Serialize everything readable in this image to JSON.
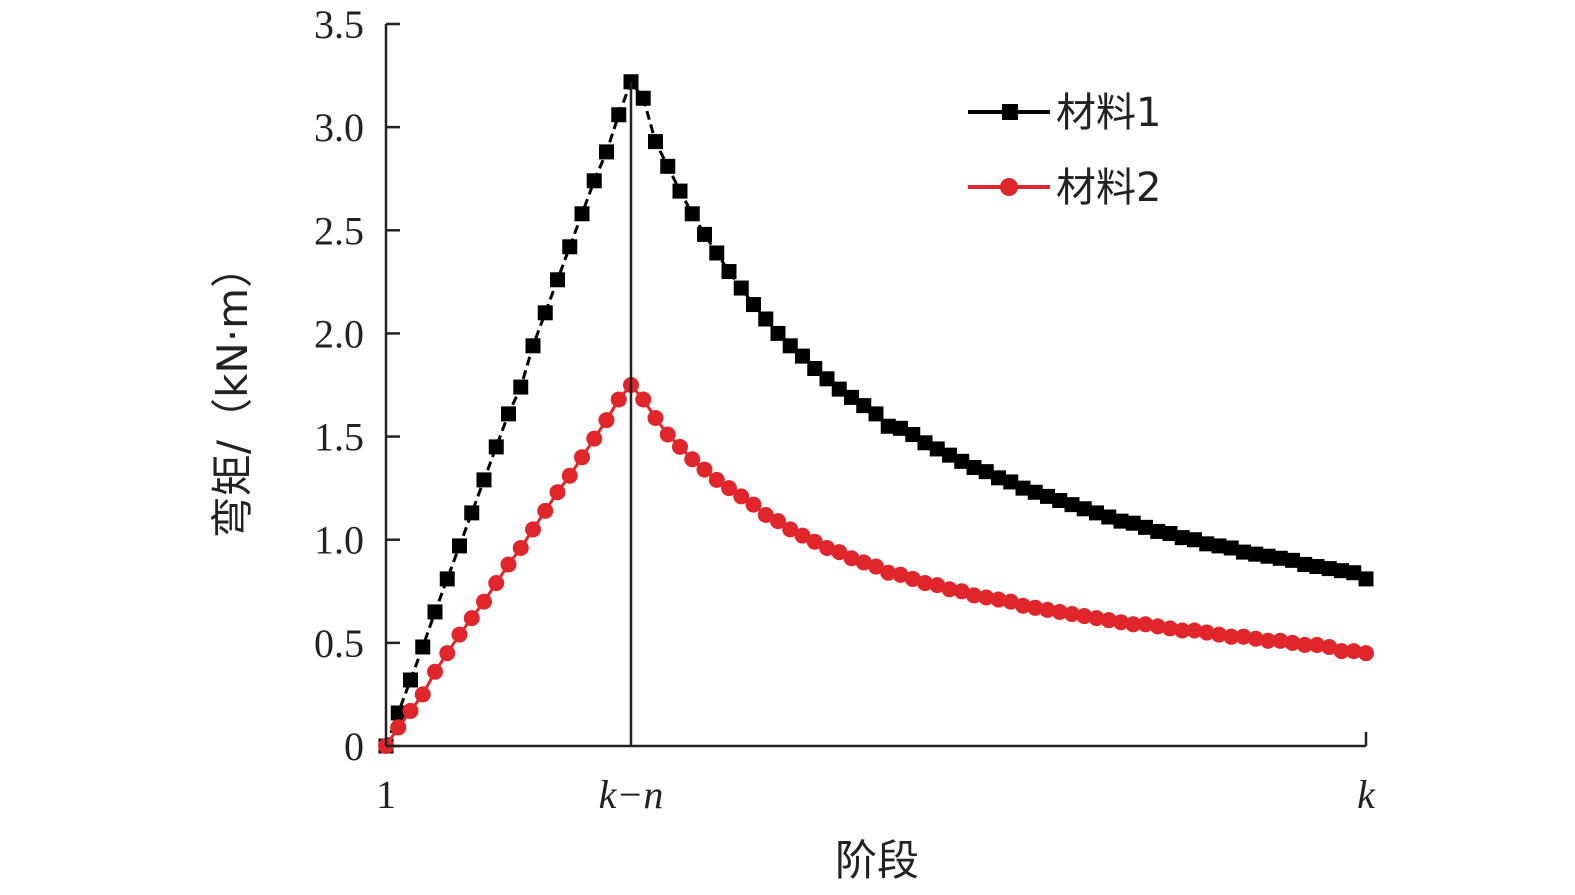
{
  "chart_data": {
    "type": "line",
    "title": "",
    "xlabel": "阶段",
    "ylabel": "弯矩/（kN·m）",
    "xlim": [
      0,
      80
    ],
    "ylim": [
      0,
      3.5
    ],
    "peak_index": 20,
    "x_ticks": [
      {
        "pos": 0,
        "label": "1"
      },
      {
        "pos": 20,
        "label": "k−n"
      },
      {
        "pos": 80,
        "label": "k"
      }
    ],
    "y_ticks": [
      {
        "value": 0,
        "label": "0"
      },
      {
        "value": 0.5,
        "label": "0.5"
      },
      {
        "value": 1.0,
        "label": "1.0"
      },
      {
        "value": 1.5,
        "label": "1.5"
      },
      {
        "value": 2.0,
        "label": "2.0"
      },
      {
        "value": 2.5,
        "label": "2.5"
      },
      {
        "value": 3.0,
        "label": "3.0"
      },
      {
        "value": 3.5,
        "label": "3.5"
      }
    ],
    "grid": false,
    "legend_position": "top-right",
    "series": [
      {
        "name": "材料1",
        "color": "#000000",
        "marker": "square",
        "line": "dashed",
        "x": [
          0,
          1,
          2,
          3,
          4,
          5,
          6,
          7,
          8,
          9,
          10,
          11,
          12,
          13,
          14,
          15,
          16,
          17,
          18,
          19,
          20,
          21,
          22,
          23,
          24,
          25,
          26,
          27,
          28,
          29,
          30,
          31,
          32,
          33,
          34,
          35,
          36,
          37,
          38,
          39,
          40,
          41,
          42,
          43,
          44,
          45,
          46,
          47,
          48,
          49,
          50,
          51,
          52,
          53,
          54,
          55,
          56,
          57,
          58,
          59,
          60,
          61,
          62,
          63,
          64,
          65,
          66,
          67,
          68,
          69,
          70,
          71,
          72,
          73,
          74,
          75,
          76,
          77,
          78,
          79,
          80
        ],
        "values": [
          0.0,
          0.16,
          0.32,
          0.48,
          0.65,
          0.81,
          0.97,
          1.13,
          1.29,
          1.45,
          1.61,
          1.74,
          1.94,
          2.1,
          2.26,
          2.42,
          2.58,
          2.74,
          2.88,
          3.06,
          3.22,
          3.14,
          2.93,
          2.81,
          2.69,
          2.58,
          2.48,
          2.39,
          2.3,
          2.22,
          2.14,
          2.07,
          2.0,
          1.94,
          1.89,
          1.83,
          1.78,
          1.73,
          1.69,
          1.65,
          1.61,
          1.55,
          1.54,
          1.51,
          1.47,
          1.44,
          1.41,
          1.38,
          1.35,
          1.33,
          1.3,
          1.28,
          1.25,
          1.23,
          1.21,
          1.19,
          1.17,
          1.15,
          1.13,
          1.11,
          1.09,
          1.08,
          1.06,
          1.04,
          1.03,
          1.01,
          1.0,
          0.98,
          0.97,
          0.96,
          0.94,
          0.93,
          0.92,
          0.91,
          0.9,
          0.88,
          0.87,
          0.86,
          0.85,
          0.84,
          0.81
        ]
      },
      {
        "name": "材料2",
        "color": "#e0262b",
        "marker": "circle",
        "line": "solid",
        "x": [
          0,
          1,
          2,
          3,
          4,
          5,
          6,
          7,
          8,
          9,
          10,
          11,
          12,
          13,
          14,
          15,
          16,
          17,
          18,
          19,
          20,
          21,
          22,
          23,
          24,
          25,
          26,
          27,
          28,
          29,
          30,
          31,
          32,
          33,
          34,
          35,
          36,
          37,
          38,
          39,
          40,
          41,
          42,
          43,
          44,
          45,
          46,
          47,
          48,
          49,
          50,
          51,
          52,
          53,
          54,
          55,
          56,
          57,
          58,
          59,
          60,
          61,
          62,
          63,
          64,
          65,
          66,
          67,
          68,
          69,
          70,
          71,
          72,
          73,
          74,
          75,
          76,
          77,
          78,
          79,
          80
        ],
        "values": [
          0.0,
          0.09,
          0.17,
          0.25,
          0.36,
          0.45,
          0.54,
          0.62,
          0.7,
          0.79,
          0.88,
          0.96,
          1.05,
          1.14,
          1.23,
          1.31,
          1.4,
          1.49,
          1.58,
          1.68,
          1.75,
          1.68,
          1.59,
          1.51,
          1.45,
          1.39,
          1.34,
          1.29,
          1.25,
          1.21,
          1.17,
          1.12,
          1.09,
          1.05,
          1.02,
          0.99,
          0.96,
          0.94,
          0.91,
          0.89,
          0.87,
          0.84,
          0.83,
          0.81,
          0.79,
          0.78,
          0.76,
          0.75,
          0.73,
          0.72,
          0.71,
          0.7,
          0.68,
          0.67,
          0.66,
          0.65,
          0.64,
          0.63,
          0.62,
          0.61,
          0.6,
          0.59,
          0.59,
          0.58,
          0.57,
          0.56,
          0.56,
          0.55,
          0.54,
          0.53,
          0.53,
          0.52,
          0.51,
          0.51,
          0.5,
          0.49,
          0.49,
          0.48,
          0.46,
          0.46,
          0.45
        ]
      }
    ]
  }
}
